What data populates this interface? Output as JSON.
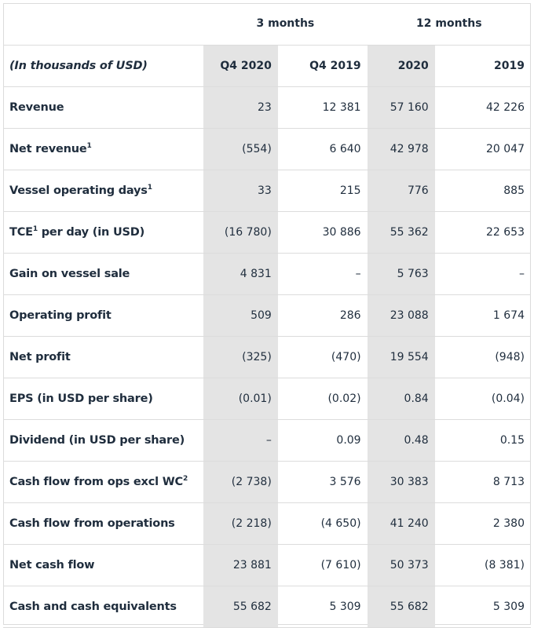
{
  "header": {
    "period_3m": "3 months",
    "period_12m": "12 months",
    "unit_label": "(In thousands of USD)",
    "columns": [
      "Q4 2020",
      "Q4 2019",
      "2020",
      "2019"
    ]
  },
  "rows": [
    {
      "label": "Revenue",
      "sup": "",
      "values": [
        "23",
        "12 381",
        "57 160",
        "42 226"
      ]
    },
    {
      "label": "Net revenue",
      "sup": "1",
      "values": [
        "(554)",
        "6 640",
        "42 978",
        "20 047"
      ]
    },
    {
      "label": "Vessel operating days",
      "sup": "1",
      "values": [
        "33",
        "215",
        "776",
        "885"
      ]
    },
    {
      "label": "TCE",
      "sup": "1",
      "label_suffix": " per day (in USD)",
      "values": [
        "(16 780)",
        "30 886",
        "55 362",
        "22 653"
      ]
    },
    {
      "label": "Gain on vessel sale",
      "sup": "",
      "values": [
        "4 831",
        "–",
        "5 763",
        "–"
      ]
    },
    {
      "label": "Operating profit",
      "sup": "",
      "values": [
        "509",
        "286",
        "23 088",
        "1 674"
      ]
    },
    {
      "label": "Net profit",
      "sup": "",
      "values": [
        "(325)",
        "(470)",
        "19 554",
        "(948)"
      ]
    },
    {
      "label": "EPS (in USD per share)",
      "sup": "",
      "values": [
        "(0.01)",
        "(0.02)",
        "0.84",
        "(0.04)"
      ]
    },
    {
      "label": "Dividend (in USD per share)",
      "sup": "",
      "values": [
        "–",
        "0.09",
        "0.48",
        "0.15"
      ]
    },
    {
      "label": "Cash flow from ops excl WC",
      "sup": "2",
      "values": [
        "(2 738)",
        "3 576",
        "30 383",
        "8 713"
      ]
    },
    {
      "label": "Cash flow from operations",
      "sup": "",
      "values": [
        "(2 218)",
        "(4 650)",
        "41 240",
        "2 380"
      ]
    },
    {
      "label": "Net cash flow",
      "sup": "",
      "values": [
        "23 881",
        "(7 610)",
        "50 373",
        "(8 381)"
      ]
    },
    {
      "label": "Cash and cash equivalents",
      "sup": "",
      "values": [
        "55 682",
        "5 309",
        "55 682",
        "5 309"
      ]
    }
  ],
  "colors": {
    "highlight_column": "#e4e4e4",
    "text": "#1f2d3d",
    "rule": "#dcdcdc"
  }
}
